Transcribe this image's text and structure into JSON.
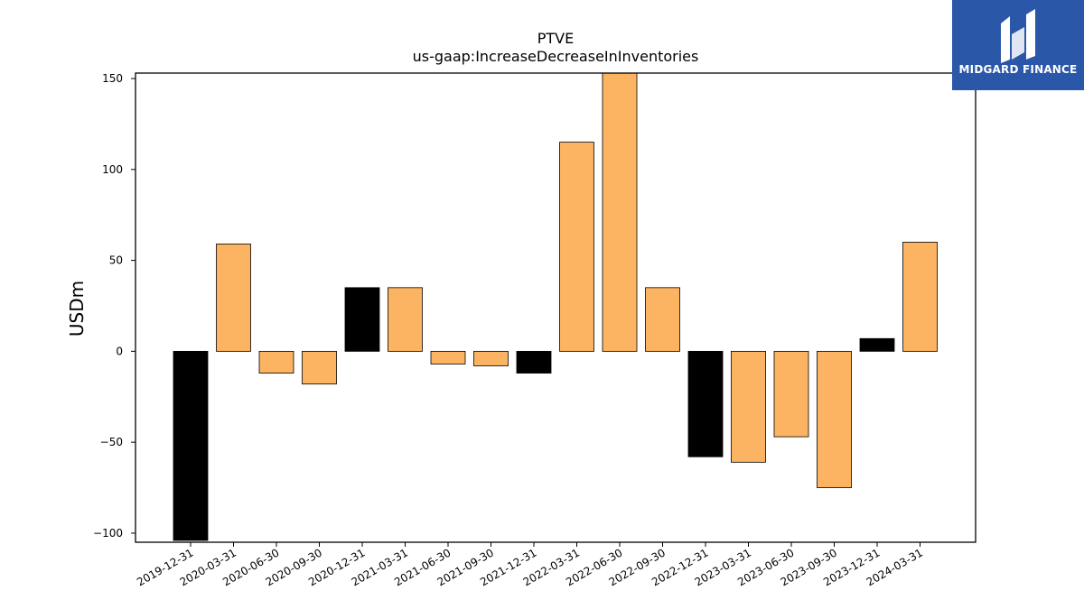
{
  "chart_data": {
    "type": "bar",
    "title": "PTVE",
    "subtitle": "us-gaap:IncreaseDecreaseInInventories",
    "ylabel": "USDm",
    "xlabel": "",
    "ylim": [
      -105,
      153
    ],
    "yticks": [
      -100,
      -50,
      0,
      50,
      100,
      150
    ],
    "grid": false,
    "categories": [
      "2019-12-31",
      "2020-03-31",
      "2020-06-30",
      "2020-09-30",
      "2020-12-31",
      "2021-03-31",
      "2021-06-30",
      "2021-09-30",
      "2021-12-31",
      "2022-03-31",
      "2022-06-30",
      "2022-09-30",
      "2022-12-31",
      "2023-03-31",
      "2023-06-30",
      "2023-09-30",
      "2023-12-31",
      "2024-03-31"
    ],
    "values": [
      -104,
      59,
      -12,
      -18,
      35,
      35,
      -7,
      -8,
      -12,
      115,
      153,
      35,
      -58,
      -61,
      -47,
      -75,
      7,
      60
    ],
    "bar_colors": [
      "#000000",
      "#fdb462",
      "#fdb462",
      "#fdb462",
      "#000000",
      "#fdb462",
      "#fdb462",
      "#fdb462",
      "#000000",
      "#fdb462",
      "#fdb462",
      "#fdb462",
      "#000000",
      "#fdb462",
      "#fdb462",
      "#fdb462",
      "#000000",
      "#fdb462"
    ]
  },
  "watermark": {
    "text": "MIDGARD FINANCE",
    "background": "#2b57a8"
  }
}
